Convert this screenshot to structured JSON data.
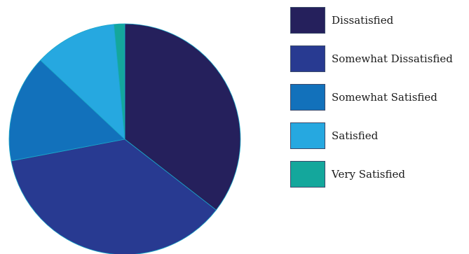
{
  "chart_data": {
    "type": "pie",
    "title": "",
    "legend_position": "right",
    "slices": [
      {
        "label": "Dissatisfied",
        "value": 35.5,
        "color": "#25205c"
      },
      {
        "label": "Somewhat Dissatisfied",
        "value": 36.5,
        "color": "#283a91"
      },
      {
        "label": "Somewhat Satisfied",
        "value": 15,
        "color": "#1271bb"
      },
      {
        "label": "Satisfied",
        "value": 11.5,
        "color": "#26a8e0"
      },
      {
        "label": "Very Satisfied",
        "value": 1.5,
        "color": "#14a79c"
      }
    ]
  }
}
